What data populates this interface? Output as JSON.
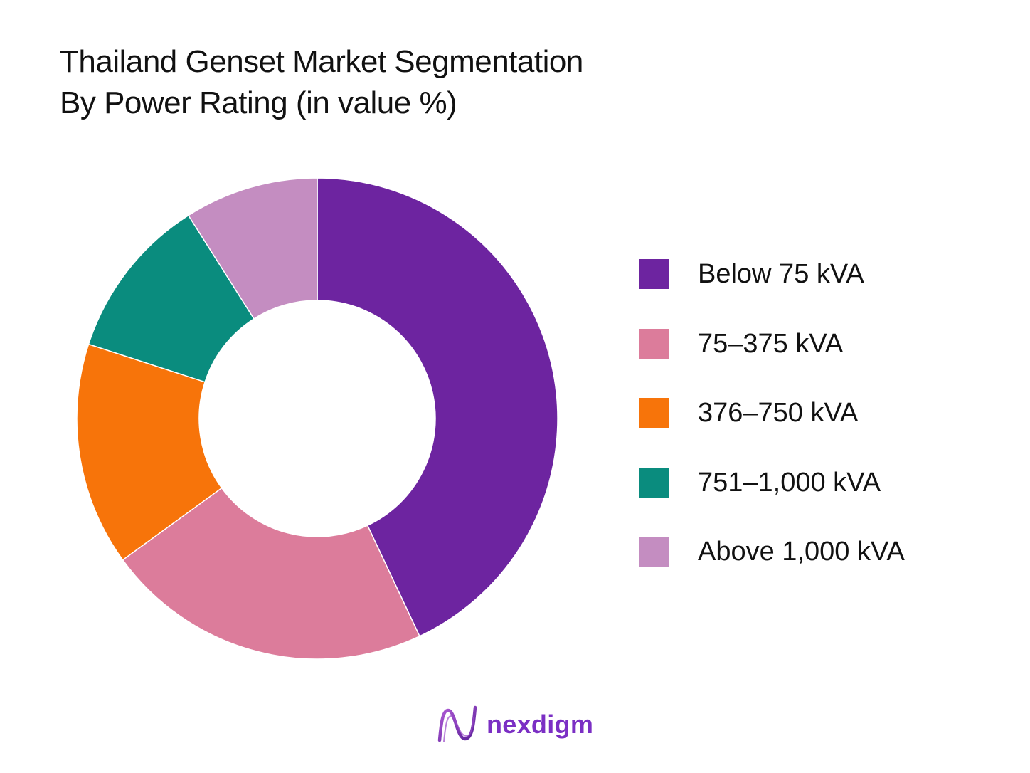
{
  "title": {
    "line1": "Thailand Genset Market Segmentation",
    "line2": "By Power Rating (in value %)"
  },
  "chart_data": {
    "type": "pie",
    "variant": "donut",
    "title": "Thailand Genset Market Segmentation By Power Rating (in value %)",
    "start_angle_deg": 0,
    "direction": "clockwise",
    "legend_position": "right",
    "categories": [
      "Below 75 kVA",
      "75–375 kVA",
      "376–750 kVA",
      "751–1,000 kVA",
      "Above 1,000 kVA"
    ],
    "values": [
      43,
      22,
      15,
      11,
      9
    ],
    "colors": [
      "#6d24a0",
      "#dc7c9b",
      "#f7740a",
      "#0a8c7e",
      "#c48dc1"
    ]
  },
  "legend": {
    "items": [
      {
        "label": "Below 75 kVA",
        "color": "#6d24a0"
      },
      {
        "label": "75–375 kVA",
        "color": "#dc7c9b"
      },
      {
        "label": "376–750 kVA",
        "color": "#f7740a"
      },
      {
        "label": "751–1,000 kVA",
        "color": "#0a8c7e"
      },
      {
        "label": "Above 1,000 kVA",
        "color": "#c48dc1"
      }
    ]
  },
  "brand": {
    "name": "nexdigm",
    "icon": "nexdigm-logo-icon",
    "color": "#7b2fc4"
  }
}
